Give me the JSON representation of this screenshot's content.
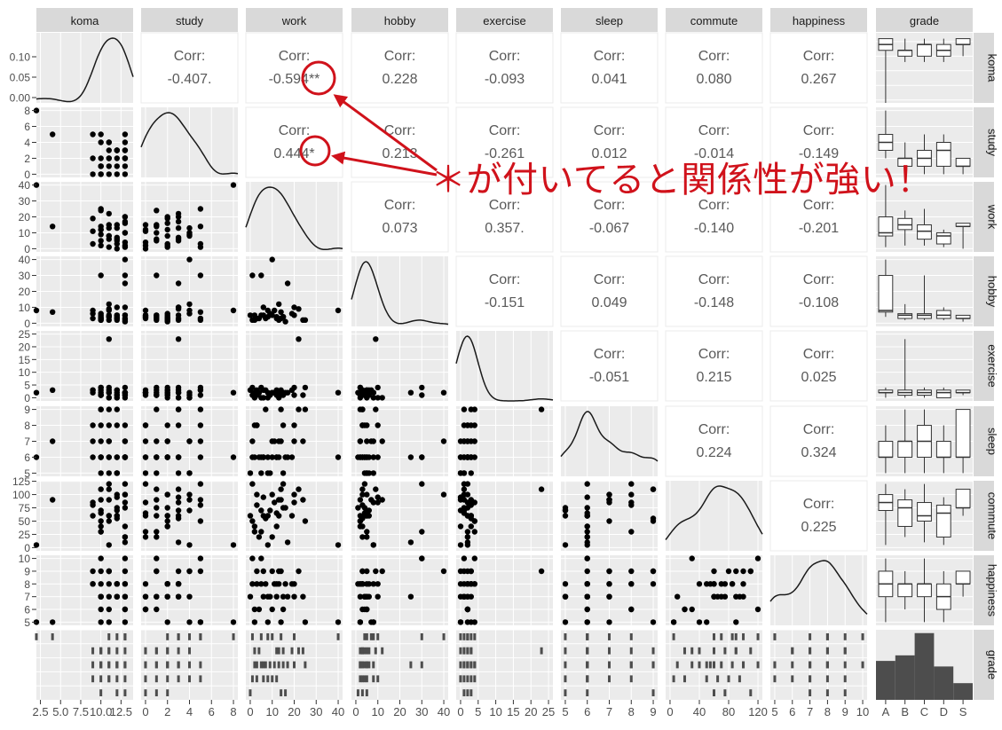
{
  "chart_data": {
    "type": "scatter-matrix",
    "variables": [
      "koma",
      "study",
      "work",
      "hobby",
      "exercise",
      "sleep",
      "commute",
      "happiness",
      "grade"
    ],
    "corr_label": "Corr:",
    "correlations": [
      [
        "study",
        "koma",
        "-0.407."
      ],
      [
        "work",
        "koma",
        "-0.594**"
      ],
      [
        "hobby",
        "koma",
        "0.228"
      ],
      [
        "exercise",
        "koma",
        "-0.093"
      ],
      [
        "sleep",
        "koma",
        "0.041"
      ],
      [
        "commute",
        "koma",
        "0.080"
      ],
      [
        "happiness",
        "koma",
        "0.267"
      ],
      [
        "work",
        "study",
        "0.444*"
      ],
      [
        "hobby",
        "study",
        "0.213"
      ],
      [
        "exercise",
        "study",
        "-0.261"
      ],
      [
        "sleep",
        "study",
        "0.012"
      ],
      [
        "commute",
        "study",
        "-0.014"
      ],
      [
        "happiness",
        "study",
        "-0.149"
      ],
      [
        "hobby",
        "work",
        "0.073"
      ],
      [
        "exercise",
        "work",
        "0.357."
      ],
      [
        "sleep",
        "work",
        "-0.067"
      ],
      [
        "commute",
        "work",
        "-0.140"
      ],
      [
        "happiness",
        "work",
        "-0.201"
      ],
      [
        "exercise",
        "hobby",
        "-0.151"
      ],
      [
        "sleep",
        "hobby",
        "0.049"
      ],
      [
        "commute",
        "hobby",
        "-0.148"
      ],
      [
        "happiness",
        "hobby",
        "-0.108"
      ],
      [
        "sleep",
        "exercise",
        "-0.051"
      ],
      [
        "commute",
        "exercise",
        "0.215"
      ],
      [
        "happiness",
        "exercise",
        "0.025"
      ],
      [
        "commute",
        "sleep",
        "0.224"
      ],
      [
        "happiness",
        "sleep",
        "0.324"
      ],
      [
        "happiness",
        "commute",
        "0.225"
      ]
    ],
    "axes": {
      "koma": {
        "ticks": [
          "2.5",
          "5.0",
          "7.5",
          "10.0",
          "12.5"
        ],
        "tick_values": [
          2.5,
          5,
          7.5,
          10,
          12.5
        ],
        "range": [
          2,
          14
        ]
      },
      "study": {
        "ticks": [
          "0",
          "2",
          "4",
          "6",
          "8"
        ],
        "tick_values": [
          0,
          2,
          4,
          6,
          8
        ],
        "range": [
          -0.4,
          8.4
        ]
      },
      "work": {
        "ticks": [
          "0",
          "10",
          "20",
          "30",
          "40"
        ],
        "tick_values": [
          0,
          10,
          20,
          30,
          40
        ],
        "range": [
          -2,
          42
        ]
      },
      "hobby": {
        "ticks": [
          "0",
          "10",
          "20",
          "30",
          "40"
        ],
        "tick_values": [
          0,
          10,
          20,
          30,
          40
        ],
        "range": [
          -2,
          42
        ]
      },
      "exercise": {
        "ticks": [
          "0",
          "5",
          "10",
          "15",
          "20",
          "25"
        ],
        "tick_values": [
          0,
          5,
          10,
          15,
          20,
          25
        ],
        "range": [
          -1.25,
          26.25
        ]
      },
      "sleep": {
        "ticks": [
          "5",
          "6",
          "7",
          "8",
          "9"
        ],
        "tick_values": [
          5,
          6,
          7,
          8,
          9
        ],
        "range": [
          4.8,
          9.2
        ]
      },
      "commute": {
        "ticks": [
          "0",
          "25",
          "50",
          "75",
          "100",
          "125"
        ],
        "x_ticks": [
          "0",
          "40",
          "80",
          "120"
        ],
        "tick_values": [
          0,
          25,
          50,
          75,
          100,
          125
        ],
        "x_tick_values": [
          0,
          40,
          80,
          120
        ],
        "range": [
          -6,
          126
        ]
      },
      "happiness": {
        "ticks": [
          "5",
          "6",
          "7",
          "8",
          "9",
          "10"
        ],
        "tick_values": [
          5,
          6,
          7,
          8,
          9,
          10
        ],
        "range": [
          4.75,
          10.25
        ]
      }
    },
    "koma_density_ticks": [
      "0.00",
      "0.05",
      "0.10"
    ],
    "grade_levels": [
      "A",
      "B",
      "C",
      "D",
      "S"
    ],
    "grade_counts": [
      7,
      8,
      12,
      6,
      3
    ],
    "observations": {
      "koma": [
        2,
        4,
        13,
        13,
        13,
        12,
        11,
        10,
        10,
        10,
        11,
        9,
        12,
        13,
        11,
        10,
        12,
        13,
        11,
        9,
        10,
        13,
        12,
        11,
        10,
        13,
        12,
        11,
        9,
        10,
        13,
        11,
        12,
        10,
        13,
        12
      ],
      "study": [
        8,
        5,
        5,
        4,
        3,
        3,
        2,
        2,
        1,
        0,
        3,
        2,
        1,
        0,
        4,
        5,
        2,
        3,
        1,
        0,
        4,
        2,
        3,
        0,
        1,
        2,
        3,
        4,
        5,
        0,
        1,
        2,
        3,
        1,
        2,
        0
      ],
      "work": [
        40,
        14,
        1,
        10,
        20,
        5,
        8,
        12,
        24,
        2,
        22,
        19,
        15,
        4,
        13,
        25,
        3,
        17,
        6,
        11,
        9,
        2,
        7,
        15,
        5,
        20,
        13,
        8,
        3,
        12,
        10,
        1,
        6,
        14,
        16,
        0
      ],
      "hobby": [
        8,
        7,
        30,
        40,
        10,
        5,
        4,
        3,
        2,
        5,
        9,
        6,
        4,
        3,
        12,
        2,
        3,
        25,
        5,
        8,
        6,
        2,
        3,
        4,
        30,
        5,
        2,
        8,
        3,
        4,
        5,
        2,
        10,
        3,
        1,
        5
      ],
      "exercise": [
        2,
        3,
        1,
        2,
        4,
        0,
        2,
        3,
        1,
        2,
        23,
        3,
        1,
        2,
        0,
        4,
        1,
        2,
        3,
        2,
        1,
        0,
        3,
        2,
        4,
        1,
        2,
        0,
        3,
        1,
        2,
        4,
        0,
        1,
        2,
        3
      ],
      "sleep": [
        6,
        7,
        6,
        7,
        8,
        5,
        6,
        6,
        7,
        8,
        9,
        6,
        5,
        6,
        7,
        9,
        8,
        6,
        6,
        7,
        5,
        6,
        9,
        8,
        6,
        7,
        6,
        5,
        8,
        6,
        6,
        7,
        6,
        9,
        6,
        5
      ],
      "commute": [
        5,
        90,
        120,
        100,
        85,
        70,
        60,
        40,
        90,
        30,
        110,
        60,
        75,
        20,
        90,
        50,
        100,
        10,
        60,
        85,
        70,
        40,
        55,
        120,
        30,
        100,
        60,
        5,
        80,
        65,
        20,
        50,
        95,
        110,
        75,
        60
      ],
      "happiness": [
        5,
        5,
        10,
        9,
        8,
        8,
        7,
        8,
        7,
        6,
        9,
        8,
        7,
        6,
        9,
        5,
        8,
        7,
        9,
        8,
        7,
        5,
        8,
        6,
        10,
        7,
        8,
        5,
        9,
        7,
        6,
        8,
        7,
        9,
        8,
        7
      ],
      "grade": [
        "A",
        "A",
        "A",
        "A",
        "A",
        "A",
        "A",
        "B",
        "B",
        "B",
        "B",
        "B",
        "B",
        "B",
        "B",
        "C",
        "C",
        "C",
        "C",
        "C",
        "C",
        "C",
        "C",
        "C",
        "C",
        "C",
        "C",
        "D",
        "D",
        "D",
        "D",
        "D",
        "D",
        "S",
        "S",
        "S"
      ]
    }
  },
  "annotation": {
    "text": "＊が付いてると関係性が強い！",
    "color": "#d0121b"
  },
  "colors": {
    "panel": "#ebebeb",
    "grid": "#ffffff",
    "strip": "#d9d9d9",
    "point": "#000000",
    "bar": "#4d4d4d",
    "corr_text": "#595959"
  }
}
